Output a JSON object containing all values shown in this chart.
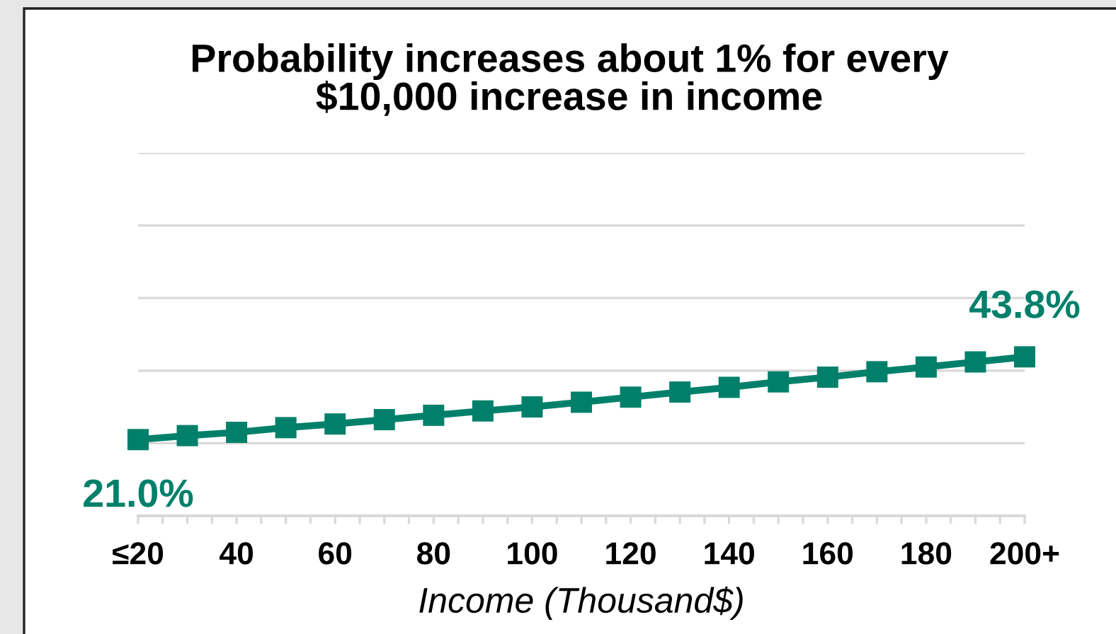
{
  "chart_data": {
    "type": "line",
    "title": "Probability increases about 1% for every\n$10,000 increase in income",
    "xlabel": "Income (Thousand$)",
    "categories": [
      "≤20",
      null,
      "40",
      null,
      "60",
      null,
      "80",
      null,
      "100",
      null,
      "120",
      null,
      "140",
      null,
      "160",
      null,
      "180",
      null,
      "200+"
    ],
    "series": [
      {
        "color": "#00806a",
        "values": [
          21.0,
          22.1,
          23.0,
          24.3,
          25.3,
          26.5,
          27.7,
          28.9,
          30.0,
          31.3,
          32.7,
          34.1,
          35.4,
          36.9,
          38.2,
          39.7,
          41.0,
          42.4,
          43.8
        ],
        "value_labels": [
          "21.0%",
          null,
          null,
          null,
          null,
          null,
          null,
          null,
          null,
          null,
          null,
          null,
          null,
          null,
          null,
          null,
          null,
          null,
          "43.8%"
        ]
      }
    ],
    "ylim": [
      0,
      100
    ],
    "yticks": [
      {
        "value": 0,
        "label": null
      },
      {
        "value": 20,
        "label": null
      },
      {
        "value": 40,
        "label": null
      },
      {
        "value": 60,
        "label": null
      },
      {
        "value": 80,
        "label": null
      },
      {
        "value": 100,
        "label": null
      }
    ],
    "grid": "y",
    "marker": "square",
    "line_style": "solid",
    "tick_labels": "x"
  }
}
